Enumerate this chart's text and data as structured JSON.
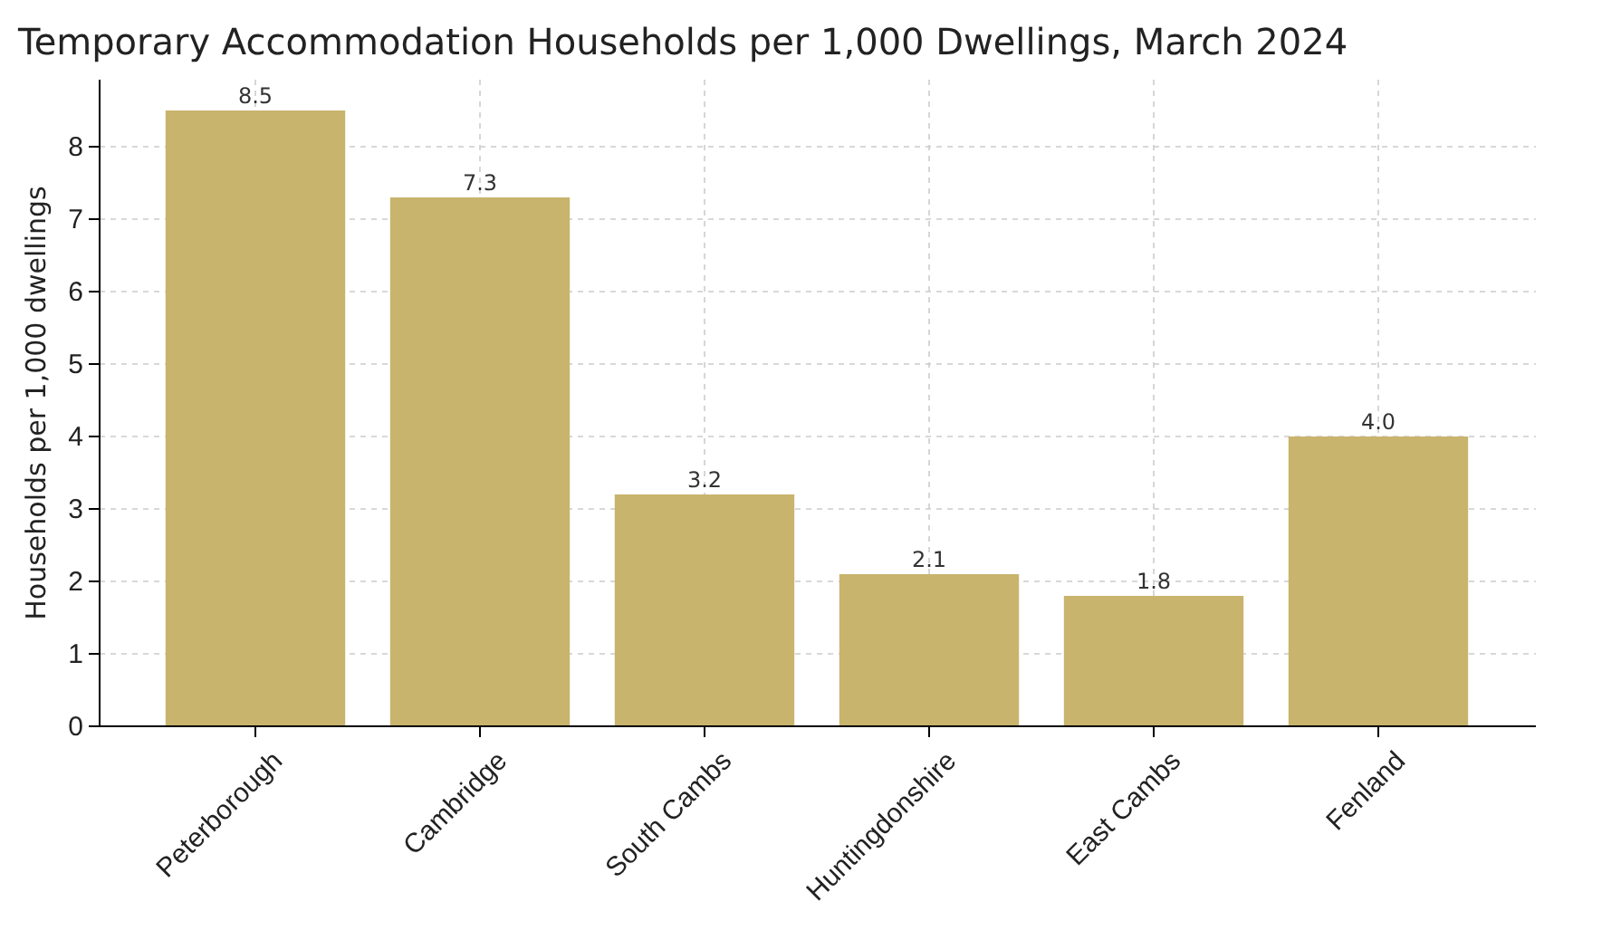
{
  "chart_data": {
    "type": "bar",
    "title": "Temporary Accommodation Households per 1,000 Dwellings, March 2024",
    "ylabel": "Households per 1,000 dwellings",
    "categories": [
      "Peterborough",
      "Cambridge",
      "South Cambs",
      "Huntingdonshire",
      "East Cambs",
      "Fenland"
    ],
    "values": [
      8.5,
      7.3,
      3.2,
      2.1,
      1.8,
      4.0
    ],
    "value_labels": [
      "8.5",
      "7.3",
      "3.2",
      "2.1",
      "1.8",
      "4.0"
    ],
    "color": "#c9b46e",
    "ylim": [
      0,
      8.925
    ],
    "yticks": [
      0,
      1,
      2,
      3,
      4,
      5,
      6,
      7,
      8
    ],
    "grid": true
  }
}
